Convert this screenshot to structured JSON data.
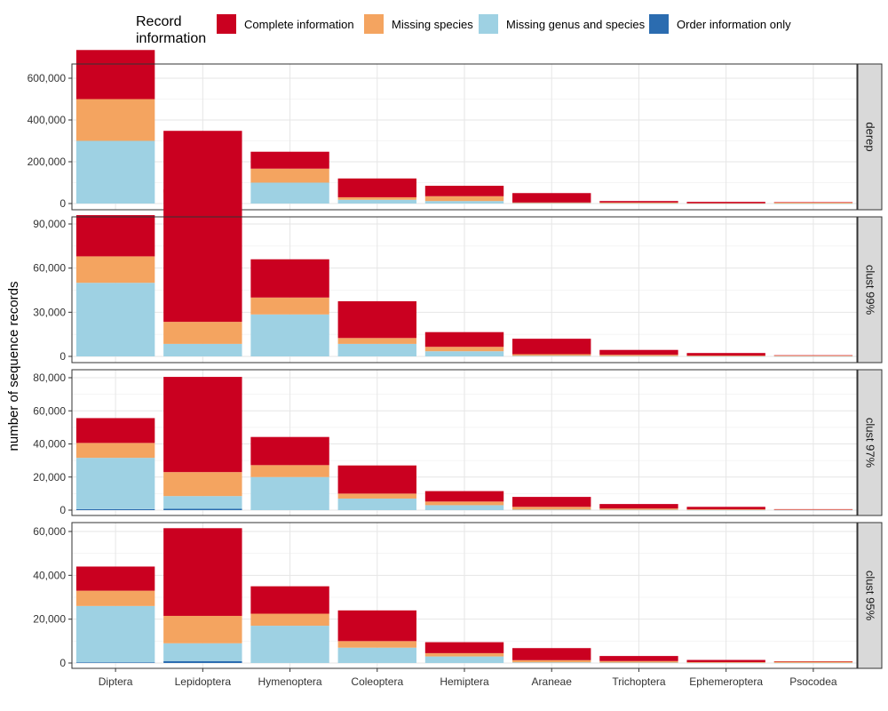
{
  "chart_data": {
    "type": "bar",
    "stacked": true,
    "facet": "rows",
    "xlabel": "",
    "ylabel": "number of sequence records",
    "legend": {
      "title": "Record\ninformation",
      "placement": "top",
      "entries": [
        {
          "name": "Complete information",
          "color": "#CA0020"
        },
        {
          "name": "Missing species",
          "color": "#F4A460"
        },
        {
          "name": "Missing genus and species",
          "color": "#9ED1E3"
        },
        {
          "name": "Order information only",
          "color": "#2B6CB0"
        }
      ]
    },
    "categories": [
      "Diptera",
      "Lepidoptera",
      "Hymenoptera",
      "Coleoptera",
      "Hemiptera",
      "Araneae",
      "Trichoptera",
      "Ephemeroptera",
      "Psocodea"
    ],
    "grid": true,
    "panels": [
      {
        "label": "derep",
        "ylim": [
          0,
          740000
        ],
        "yticks": [
          0,
          200000,
          400000,
          600000
        ],
        "ytick_labels": [
          "0",
          "200,000",
          "400,000",
          "600,000"
        ],
        "series": [
          {
            "name": "Order information only",
            "values": [
              0,
              0,
              0,
              0,
              0,
              0,
              0,
              0,
              0
            ]
          },
          {
            "name": "Missing genus and species",
            "values": [
              300000,
              20000,
              100000,
              18000,
              12000,
              2000,
              1000,
              300,
              200
            ]
          },
          {
            "name": "Missing species",
            "values": [
              200000,
              33000,
              67000,
              12000,
              23000,
              3000,
              4000,
              1200,
              5000
            ]
          },
          {
            "name": "Complete information",
            "values": [
              235000,
              295000,
              81000,
              90000,
              50000,
              45000,
              7000,
              6500,
              1300
            ]
          }
        ]
      },
      {
        "label": "clust 99%",
        "ylim": [
          0,
          114000
        ],
        "yticks": [
          0,
          30000,
          60000,
          90000
        ],
        "ytick_labels": [
          "0",
          "30,000",
          "60,000",
          "90,000"
        ],
        "series": [
          {
            "name": "Order information only",
            "values": [
              0,
              0,
              0,
              0,
              0,
              0,
              0,
              0,
              0
            ]
          },
          {
            "name": "Missing genus and species",
            "values": [
              50000,
              8500,
              28500,
              8500,
              3500,
              400,
              200,
              100,
              100
            ]
          },
          {
            "name": "Missing species",
            "values": [
              18000,
              15000,
              11500,
              4000,
              3000,
              1100,
              900,
              400,
              400
            ]
          },
          {
            "name": "Complete information",
            "values": [
              28000,
              90000,
              26000,
              25000,
              10000,
              10500,
              3300,
              1800,
              300
            ]
          }
        ]
      },
      {
        "label": "clust 97%",
        "ylim": [
          0,
          80500
        ],
        "yticks": [
          0,
          20000,
          40000,
          60000,
          80000
        ],
        "ytick_labels": [
          "0",
          "20,000",
          "40,000",
          "60,000",
          "80,000"
        ],
        "series": [
          {
            "name": "Order information only",
            "values": [
              600,
              800,
              0,
              0,
              0,
              0,
              0,
              0,
              0
            ]
          },
          {
            "name": "Missing genus and species",
            "values": [
              31000,
              7700,
              20000,
              7000,
              3000,
              300,
              200,
              100,
              100
            ]
          },
          {
            "name": "Missing species",
            "values": [
              9000,
              14500,
              7200,
              3000,
              2200,
              1700,
              800,
              400,
              300
            ]
          },
          {
            "name": "Complete information",
            "values": [
              15000,
              57500,
              17000,
              17000,
              6300,
              6000,
              2700,
              1500,
              200
            ]
          }
        ]
      },
      {
        "label": "clust 95%",
        "ylim": [
          0,
          61500
        ],
        "yticks": [
          0,
          20000,
          40000,
          60000
        ],
        "ytick_labels": [
          "0",
          "20,000",
          "40,000",
          "60,000"
        ],
        "series": [
          {
            "name": "Order information only",
            "values": [
              300,
              900,
              0,
              0,
              0,
              0,
              0,
              0,
              0
            ]
          },
          {
            "name": "Missing genus and species",
            "values": [
              25700,
              8100,
              17000,
              7000,
              3000,
              300,
              200,
              100,
              100
            ]
          },
          {
            "name": "Missing species",
            "values": [
              7000,
              12500,
              5500,
              3000,
              1500,
              1000,
              700,
              300,
              600
            ]
          },
          {
            "name": "Complete information",
            "values": [
              11000,
              40000,
              12500,
              14000,
              5000,
              5500,
              2300,
              1000,
              100
            ]
          }
        ]
      }
    ]
  }
}
